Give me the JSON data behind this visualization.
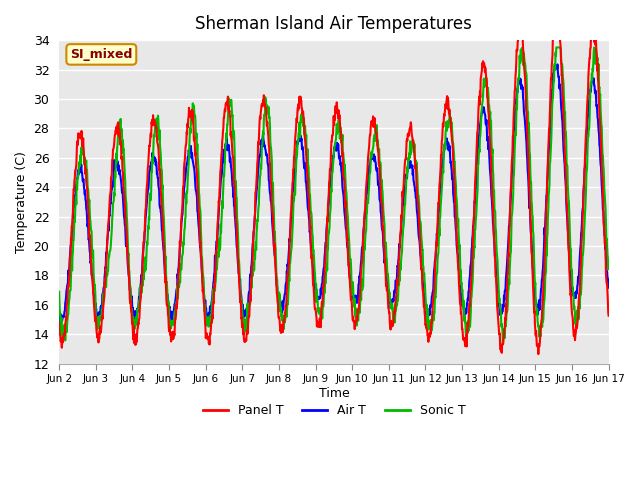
{
  "title": "Sherman Island Air Temperatures",
  "xlabel": "Time",
  "ylabel": "Temperature (C)",
  "ylim": [
    12,
    34
  ],
  "xlim": [
    0,
    15
  ],
  "plot_bg_color": "#e8e8e8",
  "grid_color": "#ffffff",
  "panel_t_color": "#ff0000",
  "air_t_color": "#0000ff",
  "sonic_t_color": "#00bb00",
  "line_width": 1.5,
  "annotation_text": "SI_mixed",
  "annotation_bg": "#ffffcc",
  "annotation_border": "#cc8800",
  "annotation_text_color": "#880000",
  "xtick_labels": [
    "Jun 2",
    "Jun 3",
    "Jun 4",
    "Jun 5",
    "Jun 6",
    "Jun 7",
    "Jun 8",
    "Jun 9",
    "Jun 10",
    "Jun 11",
    "Jun 12",
    "Jun 13",
    "Jun 14",
    "Jun 15",
    "Jun 16",
    "Jun 17"
  ],
  "ytick_values": [
    12,
    14,
    16,
    18,
    20,
    22,
    24,
    26,
    28,
    30,
    32,
    34
  ],
  "legend_labels": [
    "Panel T",
    "Air T",
    "Sonic T"
  ]
}
